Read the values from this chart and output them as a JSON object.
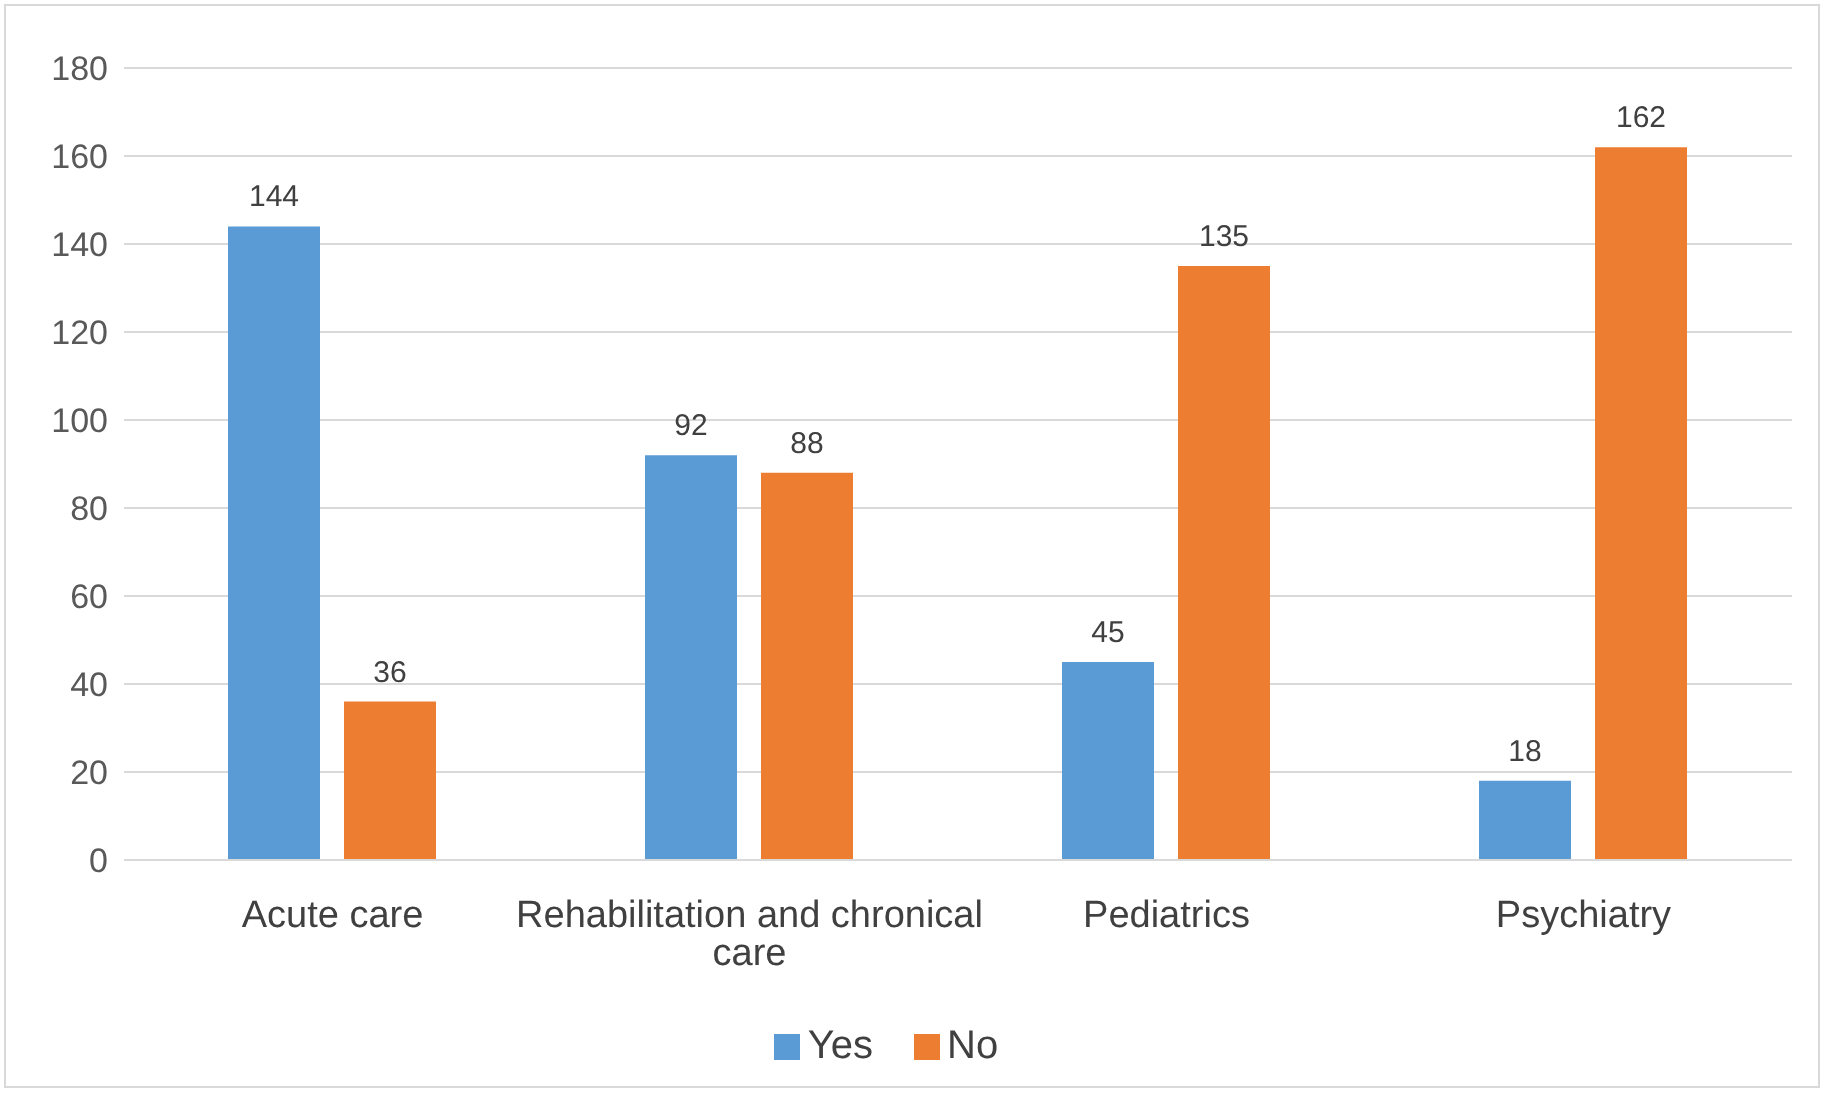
{
  "chart_data": {
    "type": "bar",
    "categories": [
      "Acute care",
      "Rehabilitation and chronical care",
      "Pediatrics",
      "Psychiatry"
    ],
    "series": [
      {
        "name": "Yes",
        "color": "#5b9bd5",
        "values": [
          144,
          92,
          45,
          18
        ]
      },
      {
        "name": "No",
        "color": "#ed7d31",
        "values": [
          36,
          88,
          135,
          162
        ]
      }
    ],
    "ylim": [
      0,
      180
    ],
    "yticks": [
      0,
      20,
      40,
      60,
      80,
      100,
      120,
      140,
      160,
      180
    ],
    "grid": "y",
    "legend": "bottom",
    "data_labels": true
  }
}
